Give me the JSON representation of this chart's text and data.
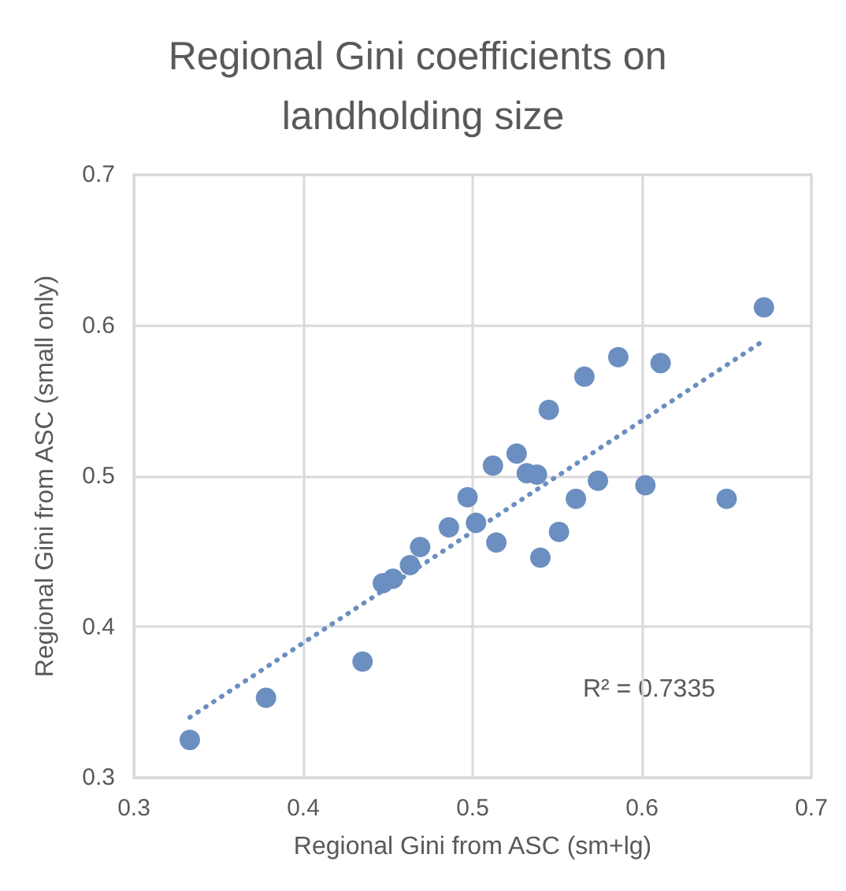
{
  "chart_data": {
    "type": "scatter",
    "title": "Regional Gini coefficients on landholding size",
    "xlabel": "Regional Gini from ASC (sm+lg)",
    "ylabel": "Regional Gini from ASC (small only)",
    "xlim": [
      0.3,
      0.7
    ],
    "xticks": [
      0.3,
      0.4,
      0.5,
      0.6,
      0.7
    ],
    "ylim": [
      0.3,
      0.7
    ],
    "yticks": [
      0.3,
      0.4,
      0.5,
      0.6,
      0.7
    ],
    "grid": true,
    "marker": "circle",
    "annotations": [
      "R² = 0.7335"
    ],
    "series": [
      {
        "color": "#6b8fc0",
        "x": [
          0.333,
          0.378,
          0.435,
          0.447,
          0.453,
          0.463,
          0.469,
          0.486,
          0.497,
          0.502,
          0.512,
          0.514,
          0.526,
          0.532,
          0.538,
          0.54,
          0.545,
          0.551,
          0.561,
          0.566,
          0.574,
          0.586,
          0.602,
          0.611,
          0.65,
          0.672
        ],
        "values": [
          0.325,
          0.353,
          0.377,
          0.429,
          0.432,
          0.441,
          0.453,
          0.466,
          0.486,
          0.469,
          0.507,
          0.456,
          0.515,
          0.502,
          0.501,
          0.446,
          0.544,
          0.463,
          0.485,
          0.566,
          0.497,
          0.579,
          0.494,
          0.575,
          0.485,
          0.612
        ]
      },
      {
        "type": "line",
        "color": "#6b8fc0",
        "marker": "none",
        "line_style": "dotted",
        "x": [
          0.333,
          0.672
        ],
        "values": [
          0.34,
          0.59
        ]
      }
    ]
  }
}
